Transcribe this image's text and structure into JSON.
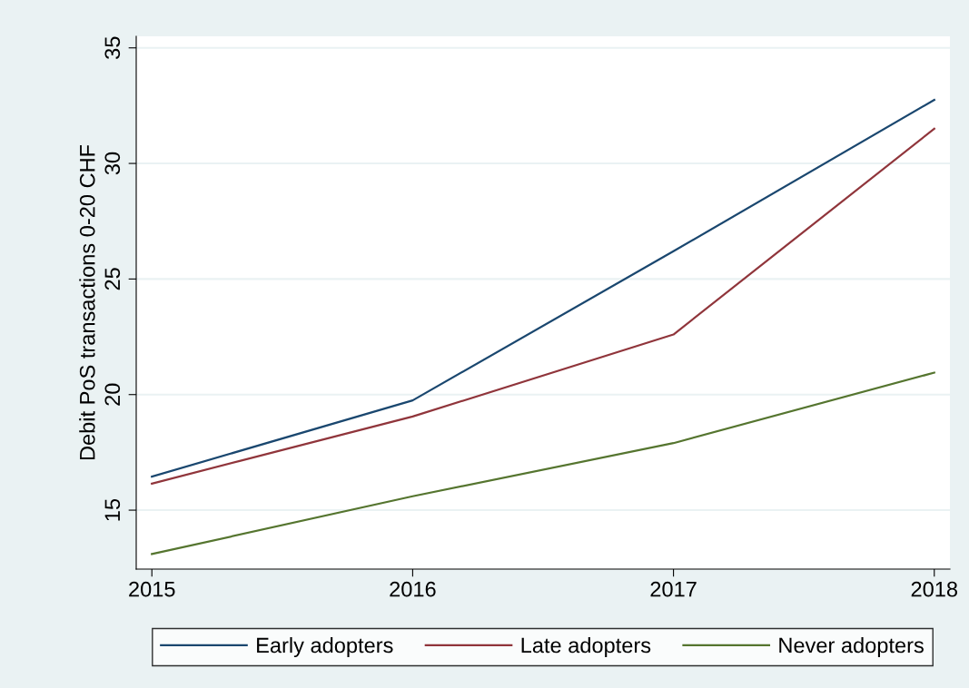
{
  "chart_data": {
    "type": "line",
    "ylabel": "Debit PoS transactions 0-20 CHF",
    "x": [
      2015,
      2016,
      2017,
      2018
    ],
    "series": [
      {
        "name": "Early adopters",
        "color": "#1a476f",
        "values": [
          16.45,
          19.75,
          26.2,
          32.75
        ]
      },
      {
        "name": "Late adopters",
        "color": "#90353b",
        "values": [
          16.15,
          19.05,
          22.6,
          31.5
        ]
      },
      {
        "name": "Never adopters",
        "color": "#55752f",
        "values": [
          13.1,
          15.6,
          17.9,
          20.95
        ]
      }
    ],
    "xlim": [
      2014.94,
      2018.06
    ],
    "xticks": [
      2015,
      2016,
      2017,
      2018
    ],
    "ylim": [
      12.45,
      35.5
    ],
    "yticks": [
      15,
      20,
      25,
      30,
      35
    ],
    "grid": "y",
    "legend": "bottom",
    "marker": "none",
    "line_style": "solid"
  }
}
